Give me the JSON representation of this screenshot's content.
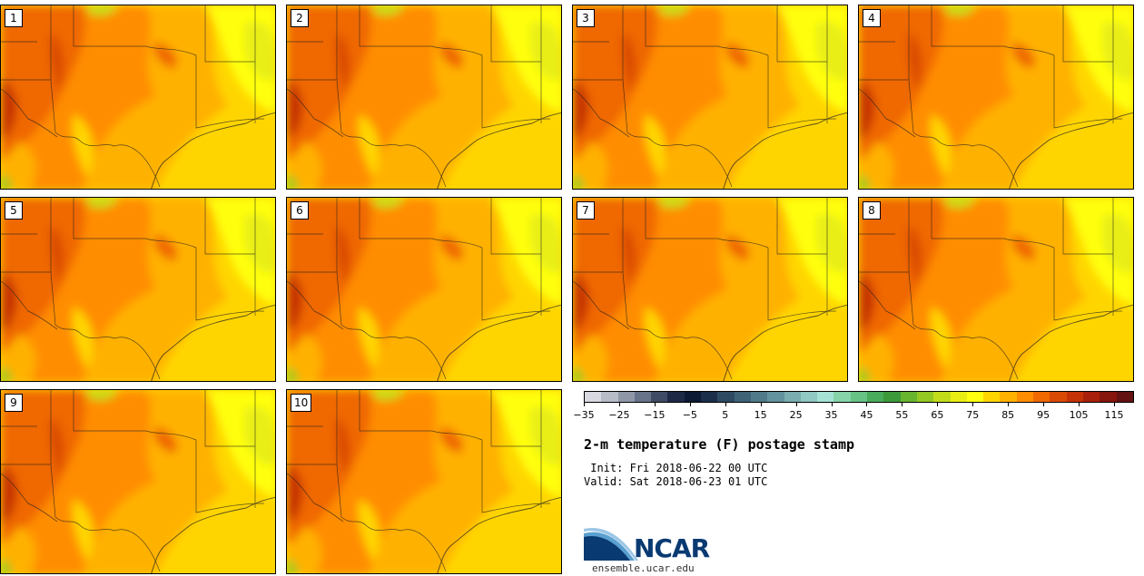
{
  "panels": [
    {
      "label": "1"
    },
    {
      "label": "2"
    },
    {
      "label": "3"
    },
    {
      "label": "4"
    },
    {
      "label": "5"
    },
    {
      "label": "6"
    },
    {
      "label": "7"
    },
    {
      "label": "8"
    },
    {
      "label": "9"
    },
    {
      "label": "10"
    }
  ],
  "colorbar": {
    "colors": [
      "#d8d8e0",
      "#b7bcc7",
      "#8f97a7",
      "#68738a",
      "#3f4b64",
      "#1e2a45",
      "#0d1a33",
      "#1b2f4a",
      "#2e4a62",
      "#3f6277",
      "#507a8a",
      "#63939e",
      "#79adb0",
      "#90c8c3",
      "#a6e2d5",
      "#86d3a9",
      "#67c285",
      "#49ab5c",
      "#3c9a3a",
      "#67b52e",
      "#94c823",
      "#c2dc1a",
      "#e8ee14",
      "#ffff10",
      "#ffd500",
      "#ffb100",
      "#ff8d00",
      "#ef6800",
      "#d94a04",
      "#c53206",
      "#a81f0b",
      "#86150e",
      "#641111"
    ],
    "tick_values": [
      "−35",
      "−25",
      "−15",
      "−5",
      "5",
      "15",
      "25",
      "35",
      "45",
      "55",
      "65",
      "75",
      "85",
      "95",
      "105",
      "115"
    ]
  },
  "title": "2-m temperature (F) postage stamp",
  "init": " Init: Fri 2018-06-22 00 UTC",
  "valid": "Valid: Sat 2018-06-23 01 UTC",
  "logo": {
    "name": "NCAR",
    "url": "ensemble.ucar.edu",
    "colors": {
      "dark_blue": "#0a3a72",
      "light_blue": "#5aa0d0"
    }
  }
}
